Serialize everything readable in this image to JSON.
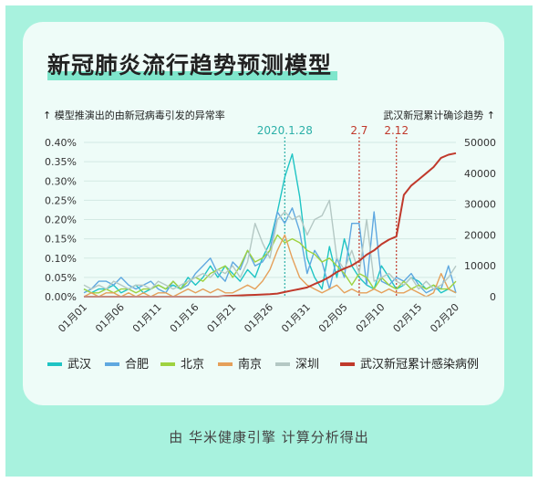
{
  "title": "新冠肺炎流行趋势预测模型",
  "source": "由 华米健康引擎 计算分析得出",
  "colors": {
    "background": "#a8f2de",
    "card": "#eefcf8",
    "title_highlight": "#7fe6cc",
    "annotation_teal": "#2bb0a8",
    "annotation_red": "#c0392b"
  },
  "chart_data": {
    "type": "line",
    "left_axis_label": "↑ 模型推演出的由新冠病毒引发的异常率",
    "right_axis_label": "武汉新冠累计确诊趋势 ↑",
    "left_ticks": [
      "0.00%",
      "0.05%",
      "0.10%",
      "0.15%",
      "0.20%",
      "0.25%",
      "0.30%",
      "0.35%",
      "0.40%"
    ],
    "right_ticks": [
      "0",
      "10000",
      "20000",
      "30000",
      "40000",
      "50000"
    ],
    "ylim_left": [
      0,
      0.4
    ],
    "ylim_right": [
      0,
      50000
    ],
    "x_tick_labels": [
      "01月01",
      "01月06",
      "01月11",
      "01月16",
      "01月21",
      "01月26",
      "01月31",
      "02月05",
      "02月10",
      "02月15",
      "02月20"
    ],
    "x_days": 51,
    "annotations": [
      {
        "label": "2020.1.28",
        "day": 27,
        "color": "#2bb0a8"
      },
      {
        "label": "2.7",
        "day": 37,
        "color": "#c0392b"
      },
      {
        "label": "2.12",
        "day": 42,
        "color": "#c0392b"
      }
    ],
    "series": [
      {
        "name": "武汉",
        "axis": "left",
        "color": "#1fc4c4",
        "values": [
          0.02,
          0.01,
          0.02,
          0.02,
          0.03,
          0.01,
          0.02,
          0.03,
          0.01,
          0.02,
          0.03,
          0.02,
          0.03,
          0.02,
          0.05,
          0.03,
          0.05,
          0.08,
          0.05,
          0.08,
          0.06,
          0.04,
          0.07,
          0.05,
          0.1,
          0.14,
          0.22,
          0.31,
          0.37,
          0.26,
          0.1,
          0.05,
          0.02,
          0.13,
          0.05,
          0.15,
          0.08,
          0.05,
          0.03,
          0.02,
          0.08,
          0.05,
          0.02,
          0.03,
          0.05,
          0.04,
          0.02,
          0.03,
          0.01,
          0.02,
          0.01
        ]
      },
      {
        "name": "合肥",
        "axis": "left",
        "color": "#5fa8e0",
        "values": [
          0.01,
          0.02,
          0.04,
          0.04,
          0.03,
          0.05,
          0.03,
          0.02,
          0.03,
          0.04,
          0.02,
          0.01,
          0.04,
          0.02,
          0.03,
          0.06,
          0.08,
          0.1,
          0.06,
          0.04,
          0.09,
          0.07,
          0.12,
          0.08,
          0.09,
          0.12,
          0.22,
          0.19,
          0.23,
          0.17,
          0.06,
          0.12,
          0.09,
          0.02,
          0.1,
          0.05,
          0.19,
          0.19,
          0.03,
          0.22,
          0.04,
          0.03,
          0.05,
          0.04,
          0.06,
          0.03,
          0.01,
          0.02,
          0.02,
          0.08,
          0.01
        ]
      },
      {
        "name": "北京",
        "axis": "left",
        "color": "#9ed240",
        "values": [
          0.02,
          0.01,
          0.01,
          0.02,
          0.01,
          0.02,
          0.02,
          0.01,
          0.02,
          0.02,
          0.03,
          0.02,
          0.04,
          0.02,
          0.04,
          0.05,
          0.04,
          0.06,
          0.07,
          0.08,
          0.05,
          0.08,
          0.12,
          0.09,
          0.1,
          0.12,
          0.16,
          0.14,
          0.15,
          0.14,
          0.12,
          0.11,
          0.09,
          0.1,
          0.08,
          0.06,
          0.03,
          0.06,
          0.05,
          0.02,
          0.05,
          0.03,
          0.02,
          0.04,
          0.02,
          0.03,
          0.02,
          0.03,
          0.02,
          0.02,
          0.04
        ]
      },
      {
        "name": "南京",
        "axis": "left",
        "color": "#e5a05a",
        "values": [
          0.0,
          0.01,
          0.0,
          0.01,
          0.01,
          0.0,
          0.01,
          0.0,
          0.01,
          0.0,
          0.01,
          0.01,
          0.0,
          0.01,
          0.02,
          0.01,
          0.02,
          0.01,
          0.02,
          0.01,
          0.01,
          0.02,
          0.03,
          0.02,
          0.04,
          0.07,
          0.12,
          0.16,
          0.1,
          0.05,
          0.03,
          0.02,
          0.01,
          0.02,
          0.03,
          0.01,
          0.02,
          0.01,
          0.01,
          0.02,
          0.01,
          0.02,
          0.01,
          0.01,
          0.02,
          0.01,
          0.0,
          0.01,
          0.06,
          0.02,
          0.01
        ]
      },
      {
        "name": "深圳",
        "axis": "left",
        "color": "#b4c8c4",
        "values": [
          0.03,
          0.02,
          0.03,
          0.02,
          0.04,
          0.03,
          0.02,
          0.03,
          0.03,
          0.02,
          0.04,
          0.03,
          0.02,
          0.03,
          0.04,
          0.05,
          0.06,
          0.05,
          0.07,
          0.06,
          0.08,
          0.05,
          0.09,
          0.19,
          0.14,
          0.1,
          0.2,
          0.22,
          0.2,
          0.21,
          0.16,
          0.2,
          0.21,
          0.25,
          0.1,
          0.07,
          0.12,
          0.06,
          0.2,
          0.04,
          0.05,
          0.06,
          0.04,
          0.03,
          0.05,
          0.02,
          0.04,
          0.02,
          0.03,
          0.05,
          0.08
        ]
      },
      {
        "name": "武汉新冠累计感染病例",
        "axis": "right",
        "color": "#c0392b",
        "values": [
          0,
          0,
          0,
          0,
          0,
          0,
          0,
          0,
          0,
          0,
          0,
          0,
          0,
          0,
          0,
          0,
          0,
          0,
          0,
          200,
          300,
          400,
          500,
          600,
          700,
          800,
          1000,
          1500,
          2000,
          2500,
          3000,
          4100,
          5100,
          6400,
          8000,
          9100,
          10100,
          11600,
          13600,
          15000,
          17000,
          18500,
          19500,
          33000,
          36000,
          38000,
          40000,
          42000,
          45000,
          46000,
          46500
        ]
      }
    ]
  }
}
